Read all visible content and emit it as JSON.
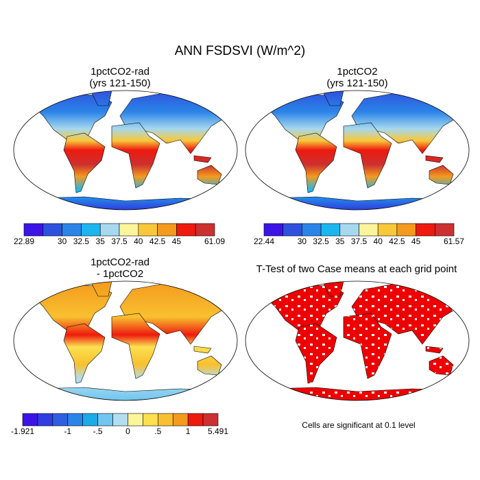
{
  "title": "ANN FSDSVI (W/m^2)",
  "panels": [
    {
      "title": [
        "1pctCO2-rad",
        "(yrs 121-150)"
      ],
      "colorbar": {
        "colors": [
          "#3c14e8",
          "#2f52de",
          "#2b84e8",
          "#1cb6ef",
          "#a6d8ee",
          "#fdf59b",
          "#f8c83a",
          "#f49a1d",
          "#ee1a0e",
          "#cc3030"
        ],
        "edges": [
          22.89,
          null,
          30,
          32.5,
          35,
          37.5,
          40,
          42.5,
          45,
          null,
          61.09
        ]
      }
    },
    {
      "title": [
        "1pctCO2",
        "(yrs 121-150)"
      ],
      "colorbar": {
        "colors": [
          "#3c14e8",
          "#2f52de",
          "#2b84e8",
          "#1cb6ef",
          "#a6d8ee",
          "#fdf59b",
          "#f8c83a",
          "#f49a1d",
          "#ee1a0e",
          "#cc3030"
        ],
        "edges": [
          22.44,
          null,
          30,
          32.5,
          35,
          37.5,
          40,
          42.5,
          45,
          null,
          61.57
        ]
      }
    },
    {
      "title": [
        "1pctCO2-rad",
        "- 1pctCO2"
      ],
      "colorbar": {
        "colors": [
          "#3c14e8",
          "#2f3ee0",
          "#2f5ee0",
          "#2b84e8",
          "#1caae8",
          "#70c6ee",
          "#b2def0",
          "#fdf59b",
          "#fbe050",
          "#f8c030",
          "#f49a1d",
          "#ee1a0e",
          "#cc3030"
        ],
        "edges": [
          -1.921,
          null,
          null,
          -1,
          null,
          {
            "value": -0.5,
            "label": "-.5"
          },
          null,
          0,
          null,
          {
            "value": 0.5,
            "label": ".5"
          },
          null,
          1,
          null,
          5.491
        ]
      }
    },
    {
      "title": [
        "T-Test of two Case means at each grid point"
      ],
      "note": "Cells are significant at 0.1 level"
    }
  ]
}
